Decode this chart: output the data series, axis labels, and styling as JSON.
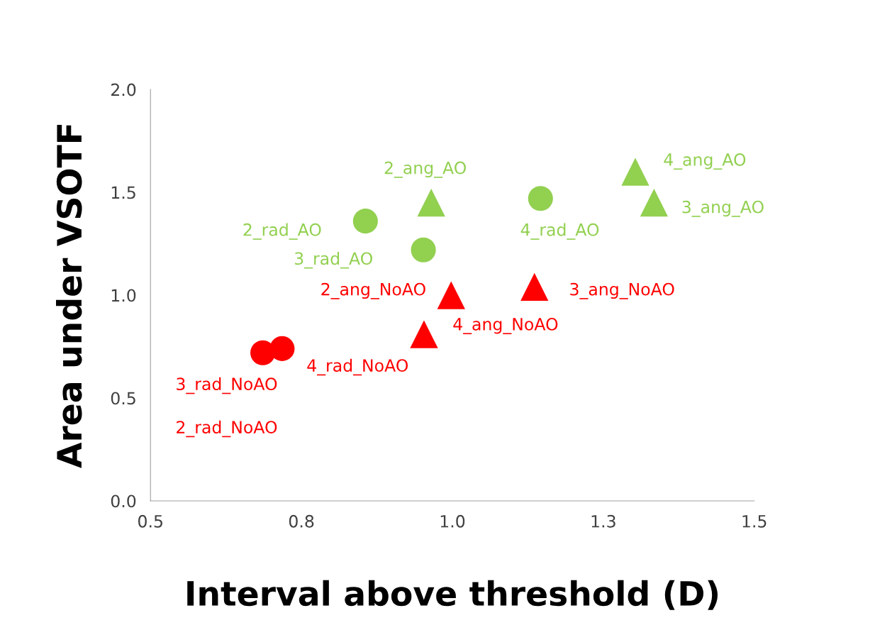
{
  "chart_data": {
    "type": "scatter",
    "xlabel": "Interval above threshold (D)",
    "ylabel": "Area under VSOTF",
    "xlim": [
      0.5,
      1.5
    ],
    "ylim": [
      0,
      2
    ],
    "xticks": [
      0.5,
      {
        "value": 0.75,
        "label": "0.8"
      },
      {
        "value": 1,
        "label": "1.0"
      },
      {
        "value": 1.25,
        "label": "1.3"
      },
      1.5
    ],
    "yticks": [
      {
        "value": 0,
        "label": "0.0"
      },
      0.5,
      {
        "value": 1,
        "label": "1.0"
      },
      1.5,
      {
        "value": 2,
        "label": "2.0"
      }
    ],
    "grid": false,
    "legend": false,
    "series": [
      {
        "color": "#92d050",
        "marker": "circle",
        "x": [
          0.856,
          0.952,
          1.146
        ],
        "values": [
          1.36,
          1.22,
          1.47
        ]
      },
      {
        "color": "#92d050",
        "marker": "triangle",
        "x": [
          0.965,
          1.303,
          1.334
        ],
        "values": [
          1.45,
          1.6,
          1.45
        ]
      },
      {
        "color": "#ff0000",
        "marker": "circle",
        "x": [
          0.686,
          0.718
        ],
        "values": [
          0.72,
          0.74
        ]
      },
      {
        "color": "#ff0000",
        "marker": "triangle",
        "x": [
          0.998,
          1.136,
          0.953
        ],
        "values": [
          1.0,
          1.04,
          0.81
        ]
      }
    ],
    "annotations": [
      "2_rad_AO",
      "3_rad_AO",
      "4_rad_AO",
      "2_ang_AO",
      "4_ang_AO",
      "3_ang_AO",
      "2_ang_NoAO",
      "3_ang_NoAO",
      "4_ang_NoAO",
      "3_rad_NoAO",
      "2_rad_NoAO",
      "4_rad_NoAO"
    ]
  }
}
